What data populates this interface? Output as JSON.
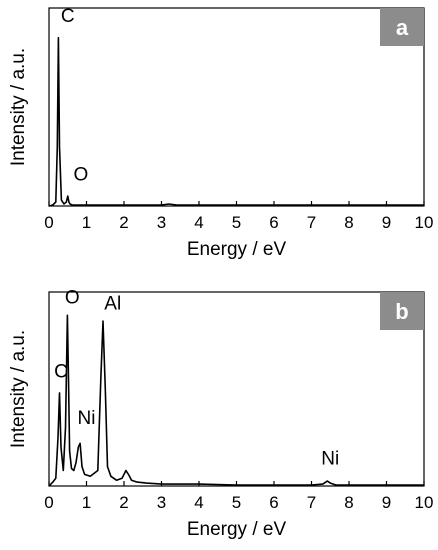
{
  "chart_data": [
    {
      "type": "line",
      "panel_label": "a",
      "xlabel": "Energy / eV",
      "ylabel": "Intensity / a.u.",
      "xlim": [
        0,
        10
      ],
      "ylim": [
        0,
        100
      ],
      "x_ticks": [
        "0",
        "1",
        "2",
        "3",
        "4",
        "5",
        "6",
        "7",
        "8",
        "9",
        "10"
      ],
      "grid": false,
      "series": [
        {
          "x": [
            0.0,
            0.1,
            0.18,
            0.22,
            0.25,
            0.28,
            0.33,
            0.4,
            0.46,
            0.5,
            0.53,
            0.56,
            0.62,
            0.8,
            1.0,
            1.5,
            2.0,
            2.5,
            3.0,
            3.2,
            3.4,
            4.0,
            5.0,
            6.0,
            7.0,
            8.0,
            9.0,
            10.0
          ],
          "y": [
            0,
            0.5,
            2,
            30,
            85,
            30,
            3,
            1,
            2,
            5,
            2,
            1,
            0.5,
            0.5,
            0.5,
            0.5,
            0.5,
            0.5,
            0.5,
            1,
            0.5,
            0.5,
            0.5,
            0.5,
            0.5,
            0.5,
            0.5,
            0.5
          ]
        }
      ],
      "annotations": [
        {
          "text": "C",
          "x": 0.5,
          "y": 93
        },
        {
          "text": "O",
          "x": 0.85,
          "y": 13
        }
      ]
    },
    {
      "type": "line",
      "panel_label": "b",
      "xlabel": "Energy / eV",
      "ylabel": "Intensity / a.u.",
      "xlim": [
        0,
        10
      ],
      "ylim": [
        0,
        100
      ],
      "x_ticks": [
        "0",
        "1",
        "2",
        "3",
        "4",
        "5",
        "6",
        "7",
        "8",
        "9",
        "10"
      ],
      "grid": false,
      "series": [
        {
          "x": [
            0.0,
            0.1,
            0.18,
            0.24,
            0.28,
            0.32,
            0.38,
            0.44,
            0.49,
            0.52,
            0.55,
            0.6,
            0.66,
            0.72,
            0.78,
            0.83,
            0.88,
            0.95,
            1.1,
            1.3,
            1.38,
            1.44,
            1.5,
            1.56,
            1.65,
            1.8,
            1.95,
            2.05,
            2.12,
            2.2,
            2.35,
            2.6,
            3.0,
            4.0,
            5.0,
            6.0,
            7.0,
            7.3,
            7.42,
            7.5,
            7.65,
            8.0,
            9.0,
            10.0
          ],
          "y": [
            0,
            2,
            4,
            25,
            48,
            20,
            8,
            30,
            88,
            55,
            18,
            9,
            8,
            12,
            20,
            22,
            10,
            6,
            5,
            8,
            55,
            85,
            50,
            10,
            5,
            3,
            4,
            8,
            6,
            3,
            2,
            1.5,
            1,
            1,
            0.5,
            0.5,
            0.5,
            1,
            2.5,
            1.5,
            0.5,
            0.5,
            0.5,
            0.5
          ]
        }
      ],
      "annotations": [
        {
          "text": "O",
          "x": 0.62,
          "y": 94
        },
        {
          "text": "Al",
          "x": 1.7,
          "y": 91
        },
        {
          "text": "C",
          "x": 0.32,
          "y": 56
        },
        {
          "text": "Ni",
          "x": 1.0,
          "y": 32
        },
        {
          "text": "Ni",
          "x": 7.5,
          "y": 11
        }
      ]
    }
  ]
}
